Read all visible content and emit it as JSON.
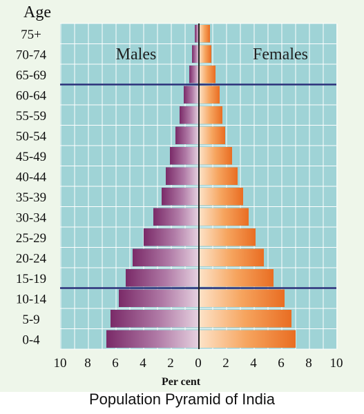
{
  "chart_data": {
    "type": "bar",
    "orientation": "horizontal-pyramid",
    "y_axis_title": "Age",
    "xlabel": "Per cent",
    "x_ticks": [
      "10",
      "8",
      "6",
      "4",
      "2",
      "0",
      "2",
      "4",
      "6",
      "8",
      "10"
    ],
    "xlim": [
      0,
      10
    ],
    "grid": true,
    "categories": [
      "0-4",
      "5-9",
      "10-14",
      "15-19",
      "20-24",
      "25-29",
      "30-34",
      "35-39",
      "40-44",
      "45-49",
      "50-54",
      "55-59",
      "60-64",
      "65-69",
      "70-74",
      "75+"
    ],
    "series": [
      {
        "name": "Males",
        "side": "left",
        "color": "#8c3b7a",
        "values": [
          6.7,
          6.4,
          5.8,
          5.3,
          4.8,
          4.0,
          3.3,
          2.7,
          2.4,
          2.1,
          1.7,
          1.4,
          1.1,
          0.7,
          0.5,
          0.3
        ]
      },
      {
        "name": "Females",
        "side": "right",
        "color": "#f0843a",
        "values": [
          7.0,
          6.7,
          6.2,
          5.4,
          4.7,
          4.1,
          3.6,
          3.2,
          2.8,
          2.4,
          1.9,
          1.7,
          1.5,
          1.2,
          0.9,
          0.8
        ]
      }
    ],
    "divider_lines_between": [
      [
        "10-14",
        "15-19"
      ],
      [
        "60-64",
        "65-69"
      ]
    ],
    "colors": {
      "plot_background": "#9fd3d6",
      "grid": "#ffffff",
      "divider": "#2b2f7a"
    }
  },
  "caption": "Population Pyramid of India"
}
